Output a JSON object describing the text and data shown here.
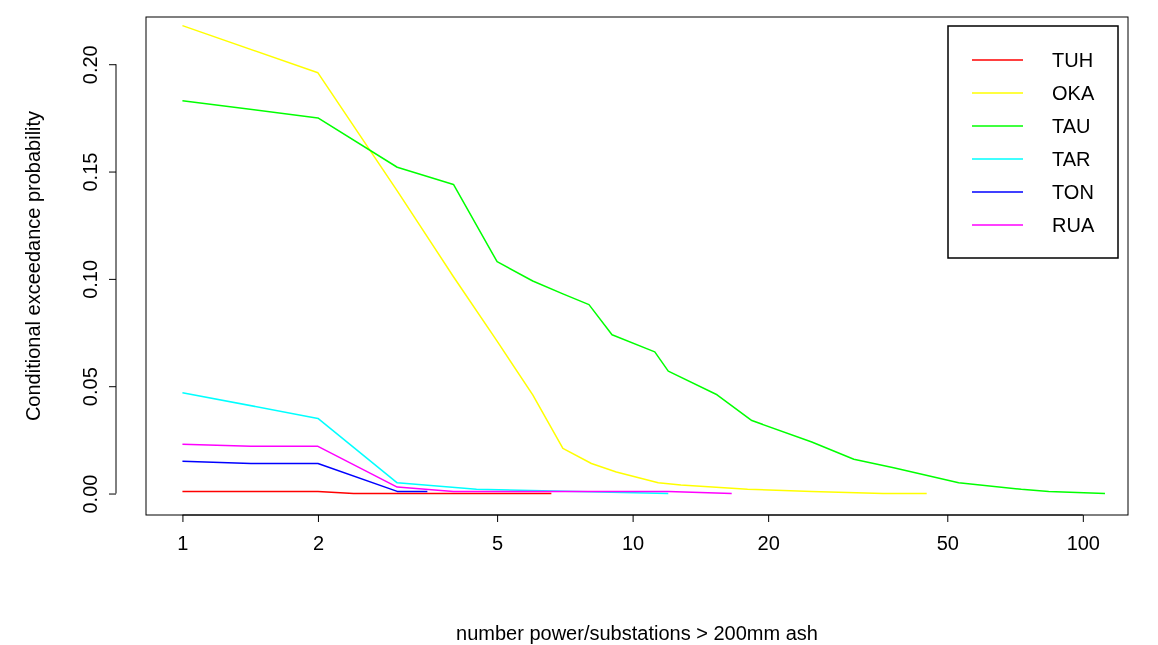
{
  "chart_data": {
    "type": "line",
    "xlabel": "number power/substations > 200mm ash",
    "ylabel": "Conditional exceedance probability",
    "log": "x",
    "xlim": [
      0.83,
      126
    ],
    "ylim": [
      -0.01,
      0.222
    ],
    "xticks": [
      1,
      2,
      5,
      10,
      20,
      50,
      100
    ],
    "yticks": [
      {
        "value": 0,
        "label": "0.00"
      },
      {
        "value": 0.05,
        "label": "0.05"
      },
      {
        "value": 0.1,
        "label": "0.10"
      },
      {
        "value": 0.15,
        "label": "0.15"
      },
      {
        "value": 0.2,
        "label": "0.20"
      }
    ],
    "grid": false,
    "legend": "top right",
    "marker": "none",
    "line_style": "solid",
    "series": [
      {
        "name": "TUH",
        "color": "#ff0000",
        "x": [
          1,
          2,
          2.4,
          3,
          4,
          5,
          6.6
        ],
        "values": [
          0.001,
          0.001,
          0.0,
          0.0,
          0.0,
          0.0,
          0.0
        ]
      },
      {
        "name": "OKA",
        "color": "#ffff00",
        "x": [
          1,
          2,
          3,
          4,
          5,
          6,
          7,
          8.1,
          9.2,
          11.4,
          12.8,
          18,
          25,
          36,
          45
        ],
        "values": [
          0.218,
          0.196,
          0.141,
          0.101,
          0.071,
          0.046,
          0.021,
          0.014,
          0.01,
          0.005,
          0.004,
          0.002,
          0.001,
          0.0,
          0.0
        ]
      },
      {
        "name": "TAU",
        "color": "#00ff00",
        "x": [
          1,
          2,
          3,
          4,
          5,
          6,
          7,
          8,
          9,
          11.2,
          12,
          15.4,
          18.4,
          25,
          31,
          38,
          53,
          73,
          84,
          112
        ],
        "values": [
          0.183,
          0.175,
          0.152,
          0.144,
          0.108,
          0.099,
          0.093,
          0.088,
          0.074,
          0.066,
          0.057,
          0.046,
          0.034,
          0.024,
          0.016,
          0.012,
          0.005,
          0.002,
          0.001,
          0.0
        ]
      },
      {
        "name": "TAR",
        "color": "#00ffff",
        "x": [
          1,
          2,
          3,
          4.5,
          12
        ],
        "values": [
          0.047,
          0.035,
          0.005,
          0.002,
          0.0
        ]
      },
      {
        "name": "TON",
        "color": "#0000ff",
        "x": [
          1,
          1.42,
          2,
          3,
          3.5
        ],
        "values": [
          0.015,
          0.014,
          0.014,
          0.001,
          0.001
        ]
      },
      {
        "name": "RUA",
        "color": "#ff00ff",
        "x": [
          1,
          1.42,
          2,
          3,
          4,
          8,
          12,
          16.6
        ],
        "values": [
          0.023,
          0.022,
          0.022,
          0.003,
          0.001,
          0.001,
          0.001,
          0.0
        ]
      }
    ]
  }
}
